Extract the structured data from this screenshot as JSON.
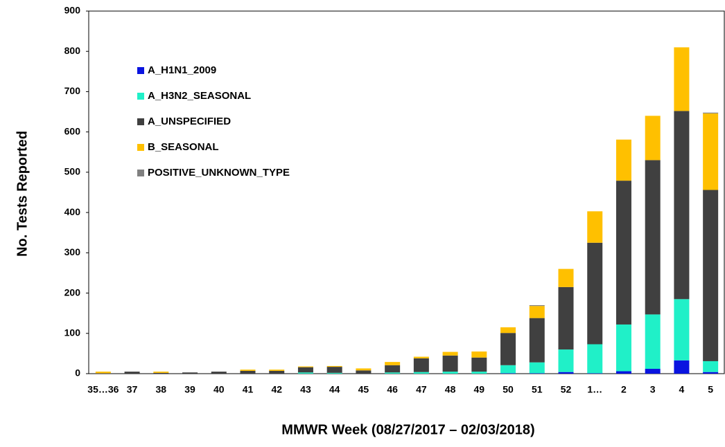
{
  "chart_data": {
    "type": "stacked_bar",
    "x_label": "MMWR Week (08/27/2017 – 02/03/2018)",
    "y_label": "No. Tests Reported",
    "categories": [
      "35…36",
      "37",
      "38",
      "39",
      "40",
      "41",
      "42",
      "43",
      "44",
      "45",
      "46",
      "47",
      "48",
      "49",
      "50",
      "51",
      "52",
      "1…",
      "2",
      "3",
      "4",
      "5"
    ],
    "series": [
      {
        "name": "A_H1N1_2009",
        "color": "#0a14e0",
        "values": [
          0,
          0,
          0,
          0,
          0,
          0,
          0,
          0,
          0,
          0,
          0,
          0,
          0,
          0,
          1,
          1,
          4,
          1,
          6,
          12,
          33,
          4
        ]
      },
      {
        "name": "A_H3N2_SEASONAL",
        "color": "#20f0c8",
        "values": [
          0,
          0,
          0,
          0,
          0,
          0,
          0,
          3,
          2,
          0,
          3,
          4,
          5,
          5,
          20,
          27,
          56,
          72,
          116,
          135,
          152,
          27
        ]
      },
      {
        "name": "A_UNSPECIFIED",
        "color": "#404040",
        "values": [
          1,
          5,
          2,
          3,
          5,
          7,
          7,
          13,
          15,
          8,
          18,
          34,
          40,
          35,
          80,
          110,
          155,
          252,
          357,
          383,
          467,
          425
        ]
      },
      {
        "name": "B_SEASONAL",
        "color": "#ffc000",
        "values": [
          4,
          0,
          3,
          0,
          0,
          3,
          3,
          2,
          2,
          5,
          8,
          4,
          9,
          15,
          14,
          30,
          45,
          78,
          102,
          110,
          158,
          190
        ]
      },
      {
        "name": "POSITIVE_UNKNOWN_TYPE",
        "color": "#808080",
        "values": [
          0,
          0,
          0,
          0,
          0,
          0,
          0,
          0,
          0,
          0,
          0,
          0,
          0,
          0,
          0,
          2,
          0,
          0,
          0,
          0,
          0,
          2
        ]
      }
    ],
    "ylim": [
      0,
      900
    ],
    "yticks": [
      0,
      100,
      200,
      300,
      400,
      500,
      600,
      700,
      800,
      900
    ]
  }
}
